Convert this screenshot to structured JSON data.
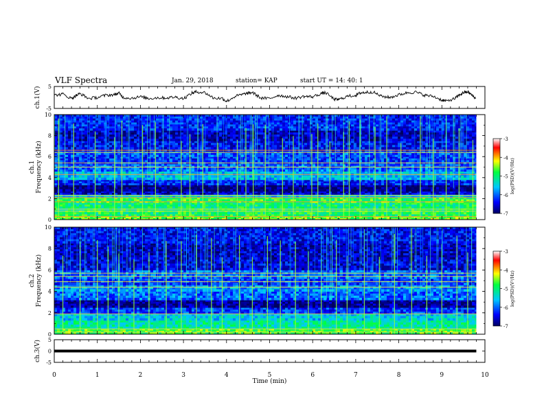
{
  "header": {
    "title": "VLF Spectra",
    "date": "Jan. 29, 2018",
    "station": "station= KAP",
    "start": "start  UT =   14: 40: 1"
  },
  "chart_data": [
    {
      "type": "line",
      "panel": "ch1-waveform",
      "ylabel": "ch.1(V)",
      "ylim": [
        -5,
        5
      ],
      "ytick_labels": [
        "5",
        "-5"
      ],
      "xlim": [
        0,
        10
      ],
      "x_extent": [
        0,
        9.8
      ],
      "series": [
        {
          "x": [
            0,
            0.2,
            0.4,
            0.5,
            0.6,
            0.8,
            1.0,
            1.2,
            1.4,
            1.5,
            1.6,
            1.8,
            2.0,
            2.2,
            2.4,
            2.6,
            2.8,
            3.0,
            3.2,
            3.3,
            3.5,
            3.7,
            3.9,
            4.0,
            4.2,
            4.4,
            4.5,
            4.6,
            4.8,
            5.0,
            5.2,
            5.4,
            5.6,
            5.8,
            6.0,
            6.2,
            6.3,
            6.5,
            6.6,
            6.8,
            7.0,
            7.1,
            7.2,
            7.4,
            7.6,
            7.8,
            8.0,
            8.2,
            8.4,
            8.6,
            8.8,
            9.0,
            9.1,
            9.3,
            9.4,
            9.5,
            9.6,
            9.7,
            9.8
          ],
          "y": [
            1.0,
            1.5,
            -0.5,
            0.8,
            1.8,
            -0.5,
            0.0,
            1.0,
            1.3,
            2.0,
            0.0,
            -0.3,
            0.3,
            -0.5,
            -0.1,
            -0.2,
            0.2,
            -0.5,
            2.0,
            2.6,
            2.2,
            -0.3,
            -0.4,
            -1.8,
            0.5,
            1.5,
            1.9,
            2.3,
            -0.3,
            -0.5,
            1.0,
            0.4,
            -0.3,
            0.5,
            0.3,
            1.8,
            2.2,
            -0.8,
            -1.0,
            0.5,
            1.0,
            2.0,
            2.3,
            2.5,
            0.5,
            0.0,
            1.2,
            2.2,
            2.4,
            1.0,
            0.5,
            -1.2,
            -1.7,
            -0.5,
            1.0,
            2.2,
            2.6,
            1.0,
            -0.8
          ]
        }
      ]
    },
    {
      "type": "heatmap",
      "panel": "ch1-spectrogram",
      "ylabel": "ch.1\nFrequency (kHz)",
      "ylim": [
        0,
        10
      ],
      "ytick_labels": [
        "0",
        "2",
        "4",
        "6",
        "8",
        "10"
      ],
      "xlim": [
        0,
        10
      ],
      "x_extent": [
        0,
        9.8
      ],
      "bands": [
        {
          "f": [
            0.0,
            0.3
          ],
          "level": -4.6
        },
        {
          "f": [
            0.3,
            0.9
          ],
          "level": -4.9
        },
        {
          "f": [
            0.9,
            1.6
          ],
          "level": -5.0
        },
        {
          "f": [
            1.6,
            2.1
          ],
          "level": -4.8
        },
        {
          "f": [
            2.1,
            2.4
          ],
          "level": -5.5
        },
        {
          "f": [
            2.4,
            2.7
          ],
          "level": -6.6
        },
        {
          "f": [
            2.7,
            3.3
          ],
          "level": -6.9
        },
        {
          "f": [
            3.3,
            3.8
          ],
          "level": -6.3
        },
        {
          "f": [
            3.8,
            4.6
          ],
          "level": -5.6
        },
        {
          "f": [
            4.6,
            5.3
          ],
          "level": -6.0
        },
        {
          "f": [
            5.3,
            6.0
          ],
          "level": -6.2
        },
        {
          "f": [
            6.0,
            6.5
          ],
          "level": -6.1
        },
        {
          "f": [
            6.5,
            7.5
          ],
          "level": -6.4
        },
        {
          "f": [
            7.5,
            8.5
          ],
          "level": -6.6
        },
        {
          "f": [
            8.5,
            10.0
          ],
          "level": -6.3
        }
      ],
      "lines_khz": [
        0.3,
        0.8,
        1.0,
        1.7,
        2.1,
        2.3,
        4.3,
        5.0,
        5.4,
        6.4,
        6.6
      ],
      "vertical_bursts_min": [
        0.1,
        0.45,
        0.95,
        1.4,
        1.57,
        2.05,
        2.35,
        2.95,
        3.15,
        3.45,
        3.8,
        4.25,
        4.45,
        4.62,
        4.9,
        5.3,
        5.55,
        5.98,
        6.12,
        6.4,
        6.72,
        6.85,
        7.1,
        7.45,
        7.72,
        8.05,
        8.5,
        8.8,
        9.1,
        9.4,
        9.72
      ]
    },
    {
      "type": "heatmap",
      "panel": "ch2-spectrogram",
      "ylabel": "ch.2\nFrequency (kHz)",
      "ylim": [
        0,
        10
      ],
      "ytick_labels": [
        "0",
        "2",
        "4",
        "6",
        "8",
        "10"
      ],
      "xlim": [
        0,
        10
      ],
      "x_extent": [
        0,
        9.8
      ],
      "bands": [
        {
          "f": [
            0.0,
            0.5
          ],
          "level": -4.7
        },
        {
          "f": [
            0.5,
            1.3
          ],
          "level": -5.2
        },
        {
          "f": [
            1.3,
            1.9
          ],
          "level": -5.5
        },
        {
          "f": [
            1.9,
            2.5
          ],
          "level": -6.2
        },
        {
          "f": [
            2.5,
            3.2
          ],
          "level": -6.8
        },
        {
          "f": [
            3.2,
            4.0
          ],
          "level": -6.0
        },
        {
          "f": [
            4.0,
            4.6
          ],
          "level": -5.8
        },
        {
          "f": [
            4.6,
            5.2
          ],
          "level": -6.2
        },
        {
          "f": [
            5.2,
            6.0
          ],
          "level": -6.0
        },
        {
          "f": [
            6.0,
            7.0
          ],
          "level": -6.5
        },
        {
          "f": [
            7.0,
            8.5
          ],
          "level": -6.6
        },
        {
          "f": [
            8.5,
            10.0
          ],
          "level": -6.4
        }
      ],
      "lines_khz": [
        0.2,
        0.5,
        1.9,
        4.4,
        4.9,
        5.4,
        5.7
      ],
      "vertical_bursts_min": [
        0.2,
        0.6,
        1.0,
        1.25,
        1.5,
        1.85,
        2.2,
        2.6,
        2.95,
        3.3,
        3.65,
        3.9,
        4.3,
        4.6,
        4.95,
        5.25,
        5.6,
        5.9,
        6.2,
        6.55,
        6.8,
        7.2,
        7.55,
        7.9,
        8.3,
        8.65,
        9.0,
        9.35,
        9.6
      ]
    },
    {
      "type": "line",
      "panel": "ch3-waveform",
      "ylabel": "ch.3(V)",
      "ylim": [
        -5,
        5
      ],
      "ytick_labels": [
        "5",
        "0",
        "-5"
      ],
      "xlim": [
        0,
        10
      ],
      "x_extent": [
        0,
        9.8
      ],
      "series": [
        {
          "x": [
            0,
            9.8
          ],
          "y": [
            0,
            0
          ]
        }
      ]
    }
  ],
  "xaxis": {
    "label": "Time (min)",
    "ticks": [
      "0",
      "1",
      "2",
      "3",
      "4",
      "5",
      "6",
      "7",
      "8",
      "9",
      "10"
    ]
  },
  "colorbars": [
    {
      "label": "log(PSD)(V²/Hz)",
      "range": [
        -7,
        -3
      ],
      "tick_labels": [
        "-3",
        "-4",
        "-5",
        "-6",
        "-7"
      ]
    },
    {
      "label": "log(PSD)(V²/Hz)",
      "range": [
        -7,
        -3
      ],
      "tick_labels": [
        "-3",
        "-4",
        "-5",
        "-6",
        "-7"
      ]
    }
  ],
  "colors": {
    "colormap": [
      "#000060",
      "#0000ff",
      "#00c8ff",
      "#00ff40",
      "#ffff00",
      "#ff0000",
      "#ffffff"
    ]
  }
}
